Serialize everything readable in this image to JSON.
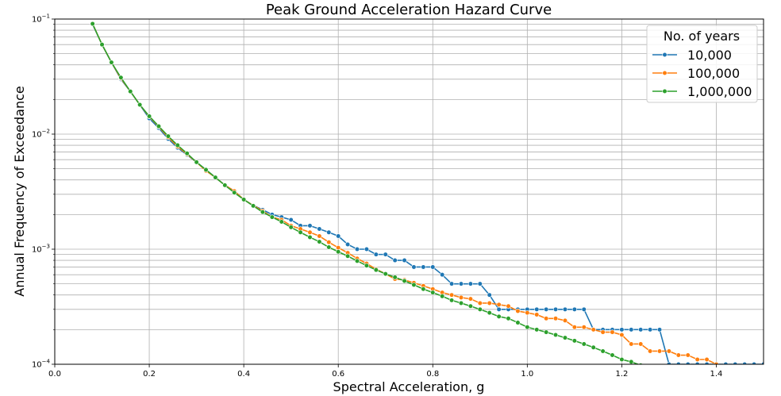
{
  "chart_data": {
    "type": "line",
    "title": "Peak Ground Acceleration Hazard Curve",
    "xlabel": "Spectral Acceleration, g",
    "ylabel": "Annual Frequency of Exceedance",
    "xlim": [
      0.0,
      1.5
    ],
    "ylim": [
      0.0001,
      0.1
    ],
    "yscale": "log",
    "grid": true,
    "legend": {
      "title": "No. of years",
      "placement": "top-right"
    },
    "x_ticks": [
      "0.0",
      "0.2",
      "0.4",
      "0.6",
      "0.8",
      "1.0",
      "1.2",
      "1.4"
    ],
    "y_ticks": [
      "10^-4",
      "10^-3",
      "10^-2",
      "10^-1"
    ],
    "series": [
      {
        "name": "10,000",
        "color": "#1f77b4",
        "x": [
          0.08,
          0.1,
          0.12,
          0.14,
          0.16,
          0.18,
          0.2,
          0.22,
          0.24,
          0.26,
          0.28,
          0.3,
          0.32,
          0.34,
          0.36,
          0.38,
          0.4,
          0.42,
          0.44,
          0.46,
          0.48,
          0.5,
          0.52,
          0.54,
          0.56,
          0.58,
          0.6,
          0.62,
          0.64,
          0.66,
          0.68,
          0.7,
          0.72,
          0.74,
          0.76,
          0.78,
          0.8,
          0.82,
          0.84,
          0.86,
          0.88,
          0.9,
          0.92,
          0.94,
          0.96,
          0.98,
          1.0,
          1.02,
          1.04,
          1.06,
          1.08,
          1.1,
          1.12,
          1.14,
          1.16,
          1.18,
          1.2,
          1.22,
          1.24,
          1.26,
          1.28,
          1.3,
          1.32,
          1.34,
          1.36,
          1.38,
          1.4,
          1.42,
          1.44,
          1.46,
          1.48,
          1.5
        ],
        "values": [
          0.09,
          0.06,
          0.042,
          0.03,
          0.0235,
          0.018,
          0.0137,
          0.0113,
          0.0091,
          0.0076,
          0.0066,
          0.0057,
          0.0049,
          0.0042,
          0.0036,
          0.0032,
          0.0027,
          0.0024,
          0.0022,
          0.002,
          0.0019,
          0.0018,
          0.0016,
          0.0016,
          0.0015,
          0.0014,
          0.0013,
          0.0011,
          0.001,
          0.001,
          0.0009,
          0.0009,
          0.0008,
          0.0008,
          0.0007,
          0.0007,
          0.0007,
          0.0006,
          0.0005,
          0.0005,
          0.0005,
          0.0005,
          0.0004,
          0.0003,
          0.0003,
          0.0003,
          0.0003,
          0.0003,
          0.0003,
          0.0003,
          0.0003,
          0.0003,
          0.0003,
          0.0002,
          0.0002,
          0.0002,
          0.0002,
          0.0002,
          0.0002,
          0.0002,
          0.0002,
          0.0001,
          0.0001,
          0.0001,
          0.0001,
          0.0001,
          0.0001,
          0.0001,
          0.0001,
          0.0001,
          0.0001,
          0.0001
        ]
      },
      {
        "name": "100,000",
        "color": "#ff7f0e",
        "x": [
          0.08,
          0.1,
          0.12,
          0.14,
          0.16,
          0.18,
          0.2,
          0.22,
          0.24,
          0.26,
          0.28,
          0.3,
          0.32,
          0.34,
          0.36,
          0.38,
          0.4,
          0.42,
          0.44,
          0.46,
          0.48,
          0.5,
          0.52,
          0.54,
          0.56,
          0.58,
          0.6,
          0.62,
          0.64,
          0.66,
          0.68,
          0.7,
          0.72,
          0.74,
          0.76,
          0.78,
          0.8,
          0.82,
          0.84,
          0.86,
          0.88,
          0.9,
          0.92,
          0.94,
          0.96,
          0.98,
          1.0,
          1.02,
          1.04,
          1.06,
          1.08,
          1.1,
          1.12,
          1.14,
          1.16,
          1.18,
          1.2,
          1.22,
          1.24,
          1.26,
          1.28,
          1.3,
          1.32,
          1.34,
          1.36,
          1.38,
          1.4
        ],
        "values": [
          0.091,
          0.06,
          0.042,
          0.0305,
          0.0235,
          0.018,
          0.0142,
          0.0116,
          0.0094,
          0.0078,
          0.0067,
          0.0057,
          0.0048,
          0.0042,
          0.0036,
          0.0032,
          0.0027,
          0.0024,
          0.00215,
          0.0019,
          0.0018,
          0.0016,
          0.0015,
          0.0014,
          0.0013,
          0.00115,
          0.00103,
          0.00093,
          0.00083,
          0.00075,
          0.00067,
          0.00061,
          0.00055,
          0.00054,
          0.00051,
          0.00048,
          0.00045,
          0.00042,
          0.0004,
          0.00038,
          0.00037,
          0.00034,
          0.00034,
          0.00033,
          0.00032,
          0.00029,
          0.00028,
          0.00027,
          0.00025,
          0.00025,
          0.00024,
          0.00021,
          0.00021,
          0.0002,
          0.00019,
          0.00019,
          0.00018,
          0.00015,
          0.00015,
          0.00013,
          0.00013,
          0.00013,
          0.00012,
          0.00012,
          0.00011,
          0.00011,
          0.0001
        ]
      },
      {
        "name": "1,000,000",
        "color": "#2ca02c",
        "x": [
          0.08,
          0.1,
          0.12,
          0.14,
          0.16,
          0.18,
          0.2,
          0.22,
          0.24,
          0.26,
          0.28,
          0.3,
          0.32,
          0.34,
          0.36,
          0.38,
          0.4,
          0.42,
          0.44,
          0.46,
          0.48,
          0.5,
          0.52,
          0.54,
          0.56,
          0.58,
          0.6,
          0.62,
          0.64,
          0.66,
          0.68,
          0.7,
          0.72,
          0.74,
          0.76,
          0.78,
          0.8,
          0.82,
          0.84,
          0.86,
          0.88,
          0.9,
          0.92,
          0.94,
          0.96,
          0.98,
          1.0,
          1.02,
          1.04,
          1.06,
          1.08,
          1.1,
          1.12,
          1.14,
          1.16,
          1.18,
          1.2,
          1.22,
          1.24
        ],
        "values": [
          0.091,
          0.06,
          0.042,
          0.031,
          0.0235,
          0.018,
          0.0143,
          0.0117,
          0.0096,
          0.008,
          0.0068,
          0.0057,
          0.0049,
          0.0042,
          0.0036,
          0.0031,
          0.0027,
          0.00238,
          0.0021,
          0.0019,
          0.00173,
          0.00155,
          0.0014,
          0.00127,
          0.00116,
          0.00104,
          0.00095,
          0.00087,
          0.00079,
          0.00072,
          0.00066,
          0.00061,
          0.00057,
          0.00053,
          0.00049,
          0.00045,
          0.00042,
          0.00039,
          0.00036,
          0.00034,
          0.00032,
          0.0003,
          0.00028,
          0.00026,
          0.00025,
          0.00023,
          0.00021,
          0.0002,
          0.00019,
          0.00018,
          0.00017,
          0.00016,
          0.00015,
          0.00014,
          0.00013,
          0.00012,
          0.00011,
          0.000105,
          9.8e-05
        ]
      }
    ]
  }
}
